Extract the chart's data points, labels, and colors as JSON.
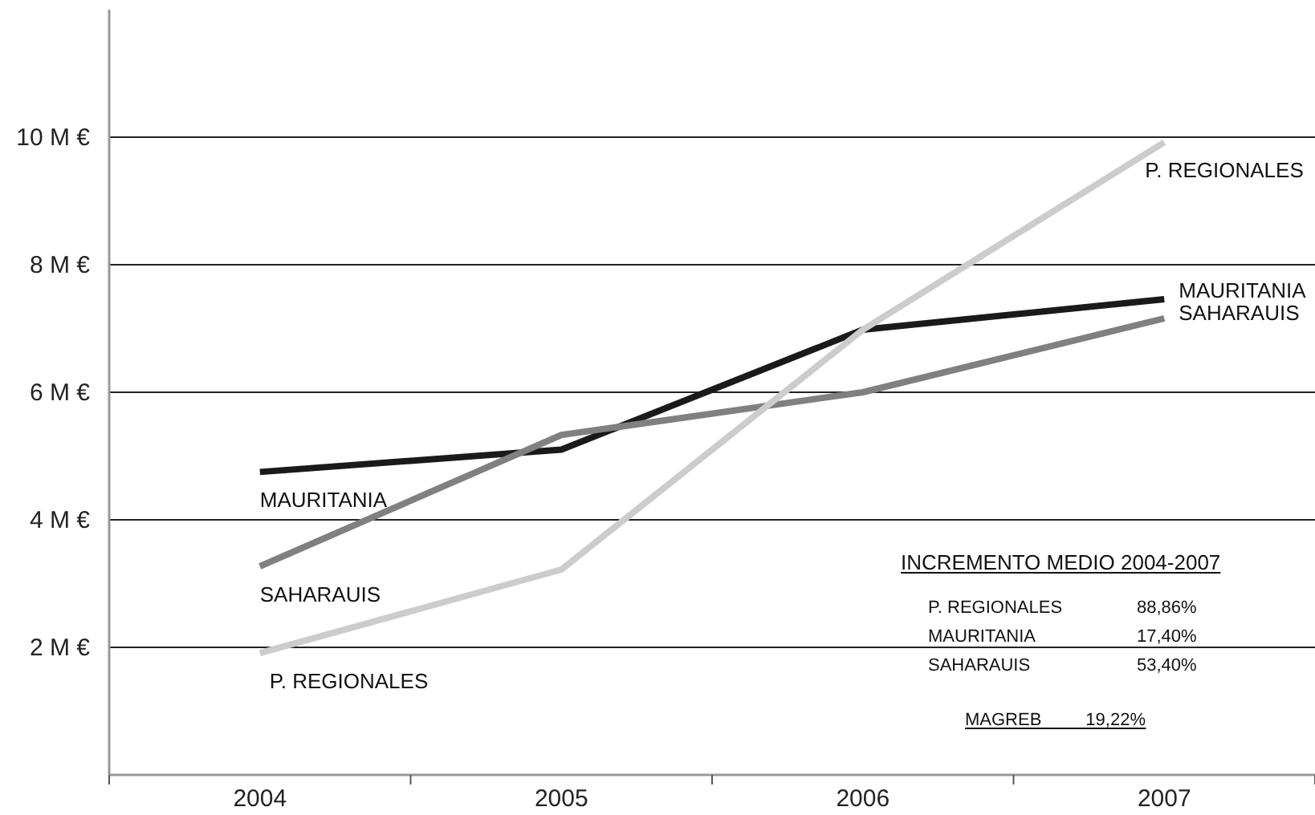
{
  "chart_data": {
    "type": "line",
    "categories": [
      "2004",
      "2005",
      "2006",
      "2007"
    ],
    "series": [
      {
        "name": "MAURITANIA",
        "color": "#1a1a1a",
        "values": [
          4.75,
          5.1,
          6.98,
          7.46
        ]
      },
      {
        "name": "SAHARAUIS",
        "color": "#808080",
        "values": [
          3.27,
          5.33,
          6.0,
          7.16
        ]
      },
      {
        "name": "P. REGIONALES",
        "color": "#cccccc",
        "values": [
          1.91,
          3.22,
          6.98,
          9.92
        ]
      }
    ],
    "ylim": [
      0,
      12
    ],
    "yticks": [
      {
        "value": 2,
        "label": "2 M €"
      },
      {
        "value": 4,
        "label": "4 M €"
      },
      {
        "value": 6,
        "label": "6 M €"
      },
      {
        "value": 8,
        "label": "8 M €"
      },
      {
        "value": 10,
        "label": "10 M €"
      }
    ],
    "grid": "y",
    "marker": "none",
    "line_style": "solid",
    "annotations": [
      "INCREMENTO MEDIO 2004-2007",
      "P. REGIONALES",
      "88,86%",
      "MAURITANIA",
      "17,40%",
      "SAHARAUIS",
      "53,40%",
      "MAGREB",
      "19,22%"
    ]
  }
}
